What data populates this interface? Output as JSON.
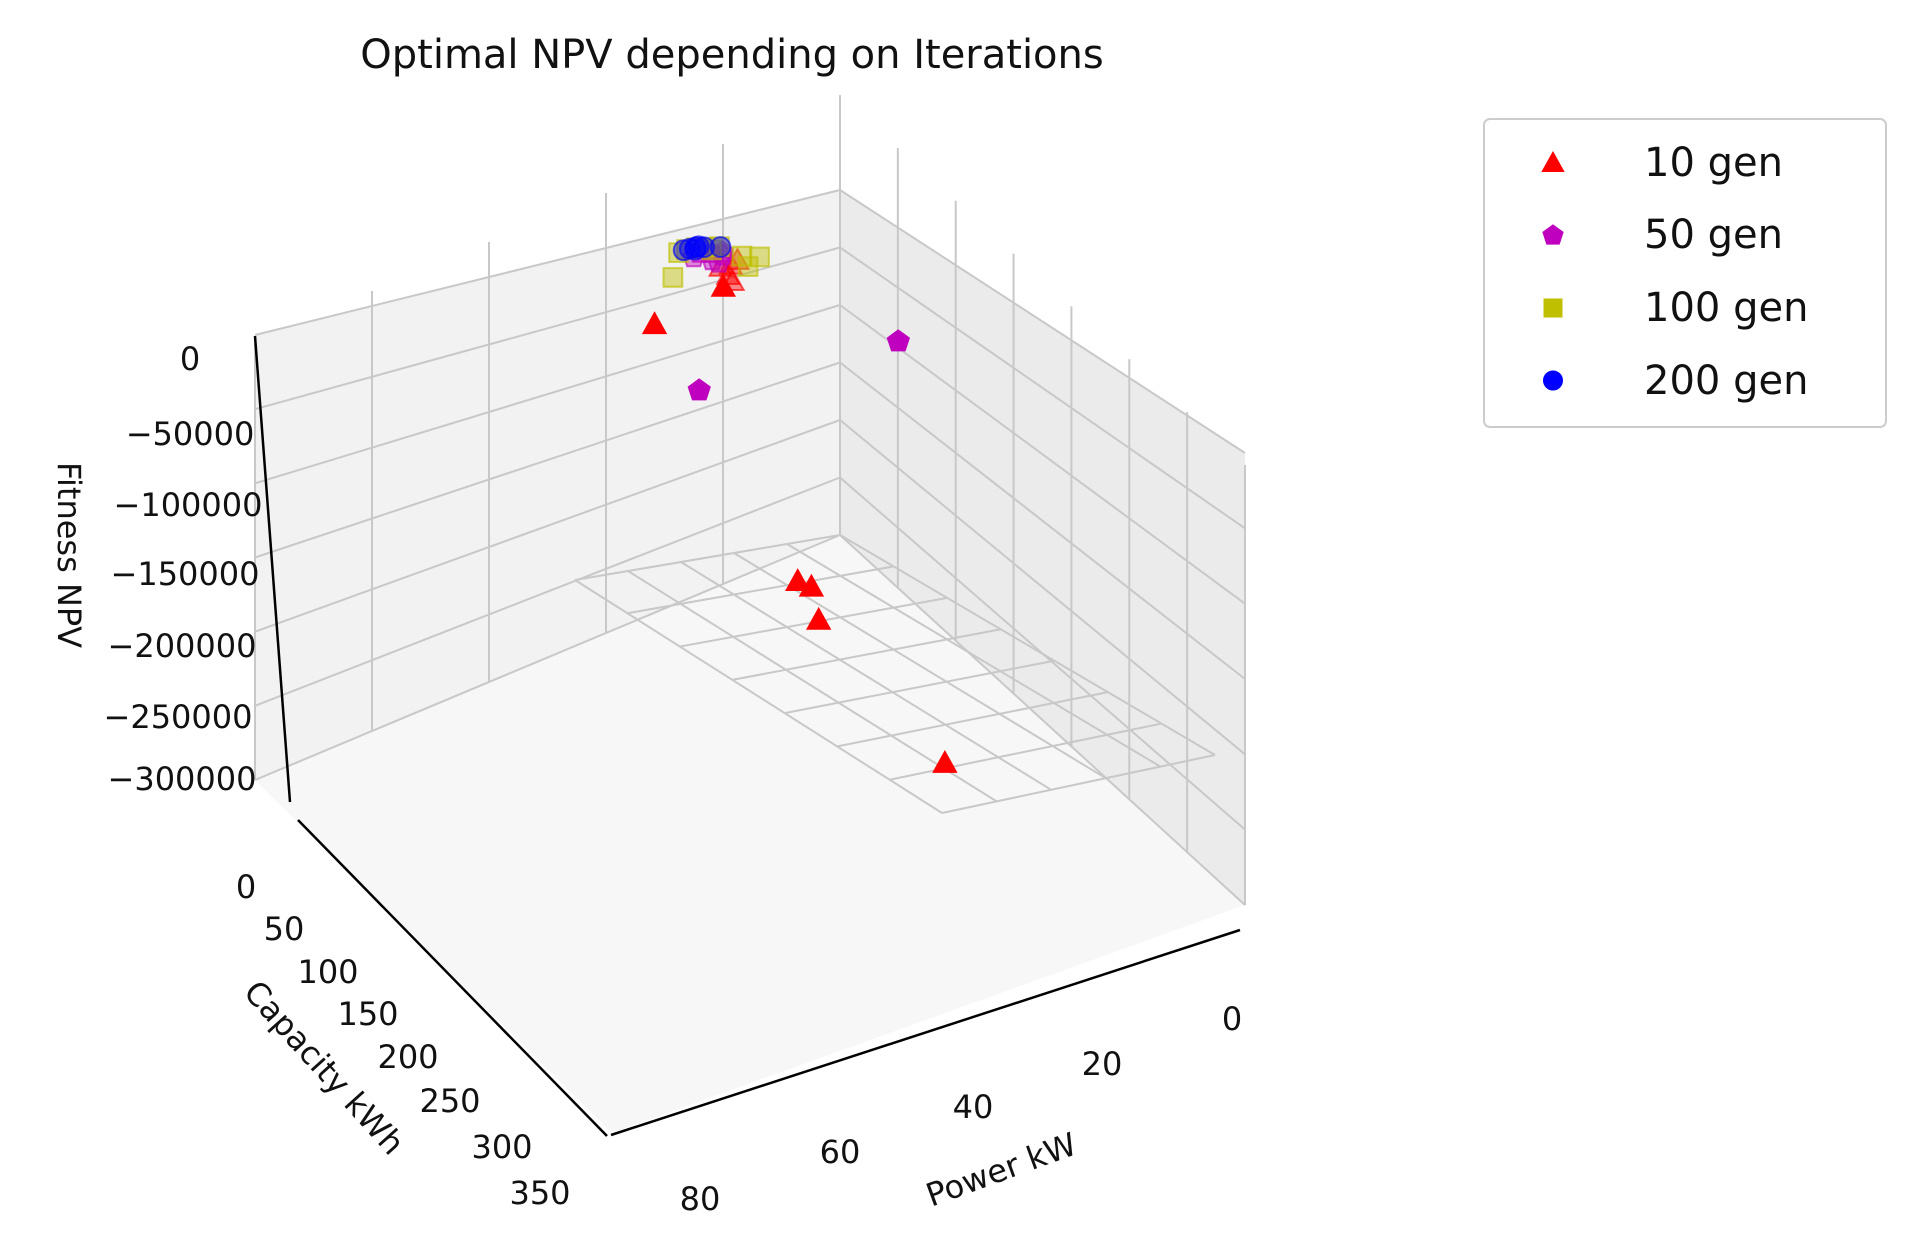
{
  "chart_data": {
    "type": "scatter",
    "projection": "3d",
    "title": "Optimal NPV depending on Iterations",
    "xlabel": "Power kW",
    "ylabel": "Capacity kWh",
    "zlabel": "Fitness NPV",
    "xticks": [
      "0",
      "20",
      "40",
      "60",
      "80"
    ],
    "yticks": [
      "0",
      "50",
      "100",
      "150",
      "200",
      "250",
      "300",
      "350"
    ],
    "zticks": [
      "0",
      "−50000",
      "−100000",
      "−150000",
      "−200000",
      "−250000",
      "−300000"
    ],
    "grid": true,
    "legend_position": "upper-right-outside",
    "series": [
      {
        "name": "10 gen",
        "marker": "triangle",
        "color": "#ff0000",
        "points": [
          {
            "x": 38,
            "y": 22,
            "z": -3000
          },
          {
            "x": 41,
            "y": 25,
            "z": -4000
          },
          {
            "x": 45,
            "y": 28,
            "z": -2000
          },
          {
            "x": 44,
            "y": 32,
            "z": -8000
          },
          {
            "x": 48,
            "y": 40,
            "z": -12000
          },
          {
            "x": 42,
            "y": 30,
            "z": -16000
          },
          {
            "x": 75,
            "y": 60,
            "z": -20000
          },
          {
            "x": 32,
            "y": 60,
            "z": -290000
          },
          {
            "x": 33,
            "y": 76,
            "z": -285000
          },
          {
            "x": 34,
            "y": 86,
            "z": -310000
          },
          {
            "x": 60,
            "y": 288,
            "z": -305000
          }
        ]
      },
      {
        "name": "50 gen",
        "marker": "pentagon",
        "color": "#bf00bf",
        "points": [
          {
            "x": 45,
            "y": 8,
            "z": -1000
          },
          {
            "x": 42,
            "y": 10,
            "z": -1500
          },
          {
            "x": 39,
            "y": 11,
            "z": -2000
          },
          {
            "x": 48,
            "y": 12,
            "z": -1200
          },
          {
            "x": 40,
            "y": 14,
            "z": -2500
          },
          {
            "x": 44,
            "y": 17,
            "z": -3000
          },
          {
            "x": 43,
            "y": 20,
            "z": -4000
          },
          {
            "x": 5,
            "y": 70,
            "z": -70000
          },
          {
            "x": 60,
            "y": 55,
            "z": -95000
          }
        ]
      },
      {
        "name": "100 gen",
        "marker": "square",
        "color": "#bfbf00",
        "points": [
          {
            "x": 44,
            "y": 2,
            "z": -300
          },
          {
            "x": 47,
            "y": 2,
            "z": -400
          },
          {
            "x": 42,
            "y": 3,
            "z": -600
          },
          {
            "x": 50,
            "y": 4,
            "z": -500
          },
          {
            "x": 38,
            "y": 5,
            "z": -700
          },
          {
            "x": 41,
            "y": 7,
            "z": -900
          },
          {
            "x": 36,
            "y": 20,
            "z": -1500
          },
          {
            "x": 32,
            "y": 24,
            "z": -2000
          },
          {
            "x": 38,
            "y": 32,
            "z": -3000
          },
          {
            "x": 60,
            "y": 30,
            "z": -2500
          }
        ]
      },
      {
        "name": "200 gen",
        "marker": "circle",
        "color": "#0000ff",
        "points": [
          {
            "x": 43,
            "y": 1,
            "z": -100
          },
          {
            "x": 44,
            "y": 1.5,
            "z": -150
          },
          {
            "x": 46,
            "y": 2,
            "z": -200
          },
          {
            "x": 48,
            "y": 2.5,
            "z": -250
          },
          {
            "x": 42,
            "y": 3,
            "z": -300
          },
          {
            "x": 45,
            "y": 4,
            "z": -350
          },
          {
            "x": 38,
            "y": 6,
            "z": -400
          }
        ]
      }
    ]
  }
}
